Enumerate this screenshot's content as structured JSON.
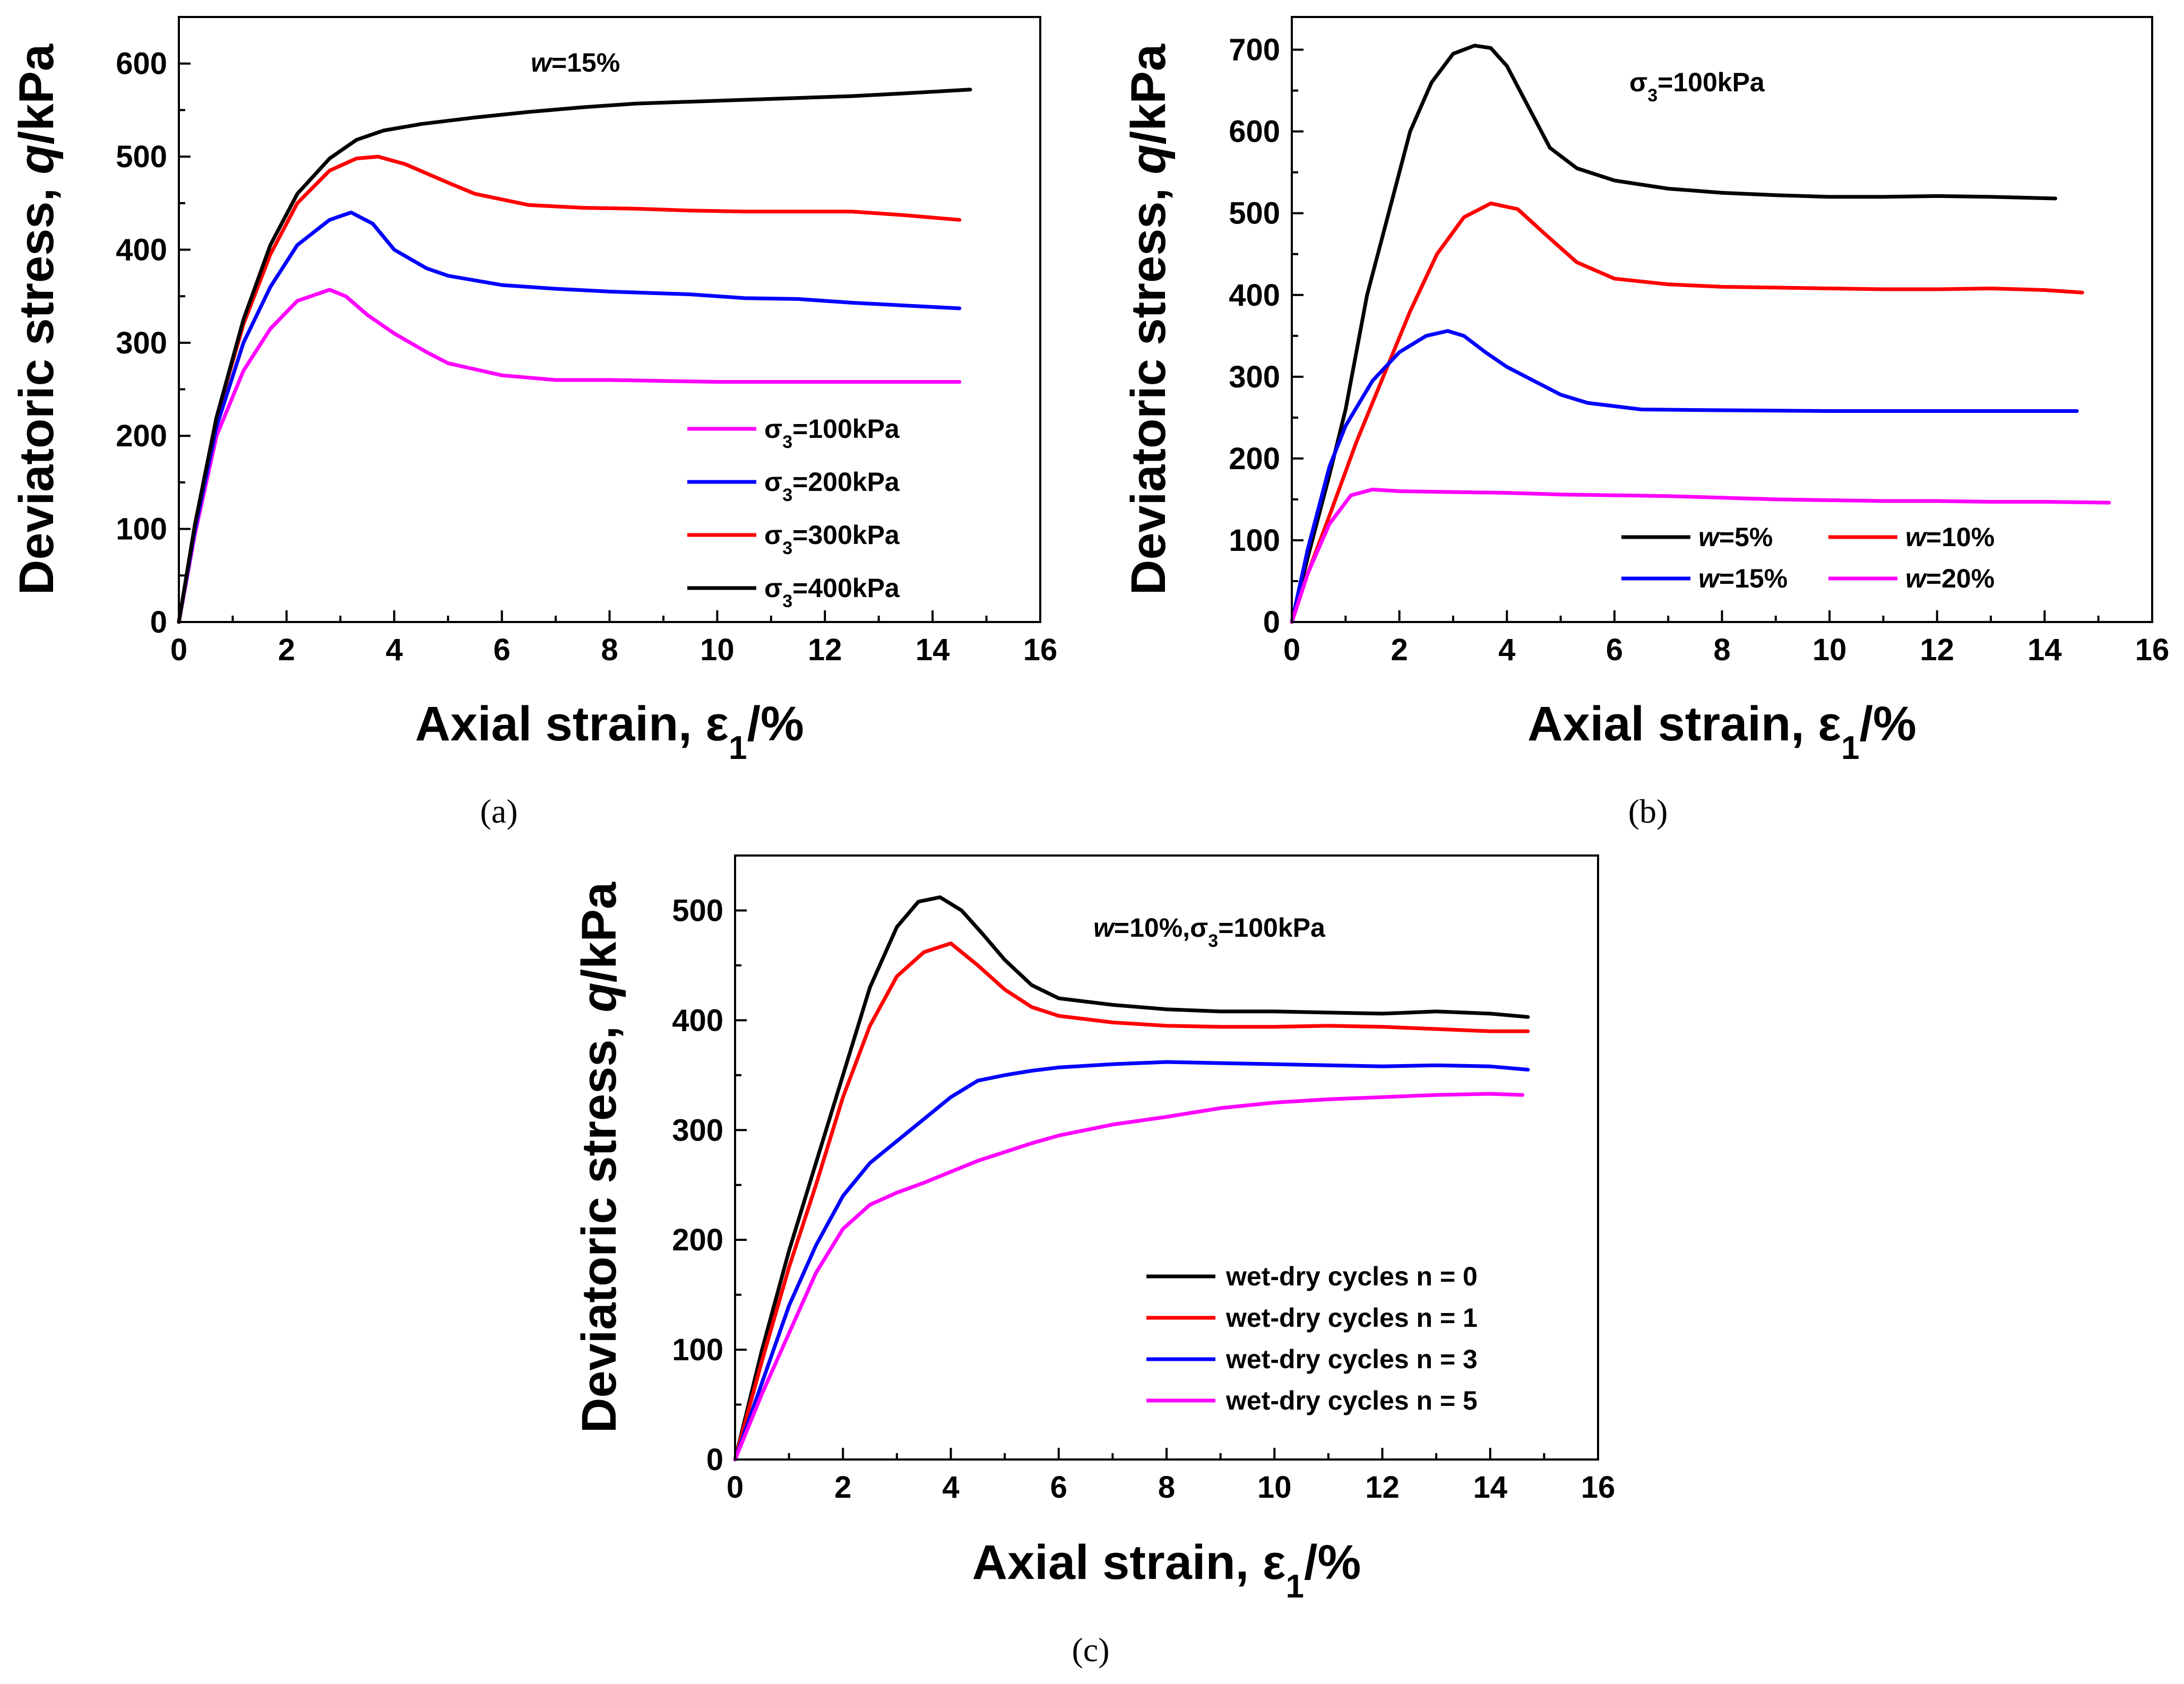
{
  "chart_data": [
    {
      "type": "line",
      "panel_label": "(a)",
      "annotation": {
        "prefix": "w",
        "text": "=15%"
      },
      "xlabel": {
        "text": "Axial strain, ε",
        "sub": "1",
        "tail": "/%"
      },
      "ylabel": {
        "text": "Deviatoric stress, ",
        "italic": "q",
        "tail": "/kPa"
      },
      "xlim": [
        0,
        16
      ],
      "ylim": [
        0,
        650
      ],
      "xticks": [
        "0",
        "2",
        "4",
        "6",
        "8",
        "10",
        "12",
        "14",
        "16"
      ],
      "yticks": [
        "0",
        "100",
        "200",
        "300",
        "400",
        "500",
        "600"
      ],
      "legend_position": "bottom-right",
      "series": [
        {
          "name": "σ3=100kPa",
          "label_pre": "σ",
          "label_sub": "3",
          "label_post": "=100kPa",
          "color": "#ff00ff",
          "x": [
            0,
            0.3,
            0.7,
            1.2,
            1.7,
            2.2,
            2.8,
            3.1,
            3.5,
            4.0,
            4.6,
            5.0,
            6.0,
            7.0,
            8.0,
            10.0,
            12.0,
            14.5
          ],
          "y": [
            0,
            95,
            200,
            270,
            315,
            345,
            357,
            350,
            330,
            310,
            290,
            278,
            265,
            260,
            260,
            258,
            258,
            258
          ]
        },
        {
          "name": "σ3=200kPa",
          "label_pre": "σ",
          "label_sub": "3",
          "label_post": "=200kPa",
          "color": "#0000ff",
          "x": [
            0,
            0.3,
            0.7,
            1.2,
            1.7,
            2.2,
            2.8,
            3.2,
            3.6,
            4.0,
            4.6,
            5.0,
            6.0,
            7.0,
            8.0,
            9.5,
            10.5,
            11.5,
            12.5,
            13.5,
            14.5
          ],
          "y": [
            0,
            100,
            210,
            300,
            360,
            405,
            432,
            440,
            428,
            400,
            380,
            372,
            362,
            358,
            355,
            352,
            348,
            347,
            343,
            340,
            337
          ]
        },
        {
          "name": "σ3=300kPa",
          "label_pre": "σ",
          "label_sub": "3",
          "label_post": "=300kPa",
          "color": "#ff0000",
          "x": [
            0,
            0.3,
            0.7,
            1.2,
            1.7,
            2.2,
            2.8,
            3.3,
            3.7,
            4.2,
            5.0,
            5.5,
            6.5,
            7.5,
            8.5,
            9.5,
            10.5,
            11.5,
            12.5,
            13.5,
            14.5
          ],
          "y": [
            0,
            105,
            220,
            320,
            395,
            450,
            485,
            498,
            500,
            492,
            472,
            460,
            448,
            445,
            444,
            442,
            441,
            441,
            441,
            437,
            432
          ]
        },
        {
          "name": "σ3=400kPa",
          "label_pre": "σ",
          "label_sub": "3",
          "label_post": "=400kPa",
          "color": "#000000",
          "x": [
            0,
            0.3,
            0.7,
            1.2,
            1.7,
            2.2,
            2.8,
            3.3,
            3.8,
            4.5,
            5.5,
            6.5,
            7.5,
            8.5,
            9.5,
            10.5,
            11.5,
            12.5,
            13.5,
            14.7
          ],
          "y": [
            0,
            105,
            220,
            325,
            405,
            460,
            498,
            518,
            528,
            535,
            542,
            548,
            553,
            557,
            559,
            561,
            563,
            565,
            568,
            572
          ]
        }
      ]
    },
    {
      "type": "line",
      "panel_label": "(b)",
      "annotation": {
        "text_pre": "σ",
        "text_sub": "3",
        "text_post": "=100kPa"
      },
      "xlabel": {
        "text": "Axial strain, ε",
        "sub": "1",
        "tail": "/%"
      },
      "ylabel": {
        "text": "Deviatoric stress, ",
        "italic": "q",
        "tail": "/kPa"
      },
      "xlim": [
        0,
        16
      ],
      "ylim": [
        0,
        740
      ],
      "xticks": [
        "0",
        "2",
        "4",
        "6",
        "8",
        "10",
        "12",
        "14",
        "16"
      ],
      "yticks": [
        "0",
        "100",
        "200",
        "300",
        "400",
        "500",
        "600",
        "700"
      ],
      "legend_position": "bottom-right",
      "series": [
        {
          "name": "w=5%",
          "label_italic": "w",
          "label_post": "=5%",
          "color": "#000000",
          "x": [
            0,
            0.3,
            0.7,
            1.0,
            1.4,
            1.8,
            2.2,
            2.6,
            3.0,
            3.4,
            3.7,
            4.0,
            4.4,
            4.8,
            5.3,
            6.0,
            7.0,
            8.0,
            9.0,
            10.0,
            11.0,
            12.0,
            13.0,
            14.2
          ],
          "y": [
            0,
            80,
            180,
            260,
            400,
            500,
            600,
            660,
            695,
            705,
            702,
            680,
            630,
            580,
            555,
            540,
            530,
            525,
            522,
            520,
            520,
            521,
            520,
            518
          ]
        },
        {
          "name": "w=10%",
          "label_italic": "w",
          "label_post": "=10%",
          "color": "#ff0000",
          "x": [
            0,
            0.3,
            0.7,
            1.2,
            1.7,
            2.2,
            2.7,
            3.2,
            3.7,
            4.2,
            4.7,
            5.3,
            6.0,
            7.0,
            8.0,
            9.0,
            10.0,
            11.0,
            12.0,
            13.0,
            14.0,
            14.7
          ],
          "y": [
            0,
            60,
            130,
            220,
            300,
            380,
            450,
            495,
            512,
            505,
            475,
            440,
            420,
            413,
            410,
            409,
            408,
            407,
            407,
            408,
            406,
            403
          ]
        },
        {
          "name": "w=15%",
          "label_italic": "w",
          "label_post": "=15%",
          "color": "#0000ff",
          "x": [
            0,
            0.3,
            0.7,
            1.0,
            1.5,
            2.0,
            2.5,
            2.9,
            3.2,
            3.6,
            4.0,
            4.5,
            5.0,
            5.5,
            6.5,
            8.0,
            10.0,
            12.0,
            14.6
          ],
          "y": [
            0,
            90,
            190,
            240,
            295,
            330,
            350,
            356,
            350,
            330,
            312,
            295,
            278,
            268,
            260,
            259,
            258,
            258,
            258
          ]
        },
        {
          "name": "w=20%",
          "label_italic": "w",
          "label_post": "=20%",
          "color": "#ff00ff",
          "x": [
            0,
            0.3,
            0.7,
            1.1,
            1.5,
            2.0,
            3.0,
            4.0,
            5.0,
            6.0,
            7.0,
            8.0,
            9.0,
            10.0,
            11.0,
            12.0,
            13.0,
            14.0,
            15.2
          ],
          "y": [
            0,
            60,
            120,
            155,
            162,
            160,
            159,
            158,
            156,
            155,
            154,
            152,
            150,
            149,
            148,
            148,
            147,
            147,
            146
          ]
        }
      ]
    },
    {
      "type": "line",
      "panel_label": "(c)",
      "annotation": {
        "prefix": "w",
        "text_pre": "=10%,σ",
        "text_sub": "3",
        "text_post": "=100kPa"
      },
      "xlabel": {
        "text": "Axial strain, ε",
        "sub": "1",
        "tail": "/%"
      },
      "ylabel": {
        "text": "Deviatoric stress, ",
        "italic": "q",
        "tail": "/kPa"
      },
      "xlim": [
        0,
        16
      ],
      "ylim": [
        0,
        550
      ],
      "xticks": [
        "0",
        "2",
        "4",
        "6",
        "8",
        "10",
        "12",
        "14",
        "16"
      ],
      "yticks": [
        "0",
        "100",
        "200",
        "300",
        "400",
        "500"
      ],
      "legend_position": "bottom-right",
      "series": [
        {
          "name": "wet-dry cycles n = 0",
          "color": "#000000",
          "x": [
            0,
            0.5,
            1.0,
            1.5,
            2.0,
            2.5,
            3.0,
            3.4,
            3.8,
            4.2,
            4.6,
            5.0,
            5.5,
            6.0,
            7.0,
            8.0,
            9.0,
            10.0,
            11.0,
            12.0,
            13.0,
            14.0,
            14.7
          ],
          "y": [
            0,
            100,
            190,
            270,
            350,
            430,
            485,
            508,
            512,
            500,
            478,
            455,
            432,
            420,
            414,
            410,
            408,
            408,
            407,
            406,
            408,
            406,
            403
          ]
        },
        {
          "name": "wet-dry cycles n = 1",
          "color": "#ff0000",
          "x": [
            0,
            0.5,
            1.0,
            1.5,
            2.0,
            2.5,
            3.0,
            3.5,
            4.0,
            4.5,
            5.0,
            5.5,
            6.0,
            7.0,
            8.0,
            9.0,
            10.0,
            11.0,
            12.0,
            13.0,
            14.0,
            14.7
          ],
          "y": [
            0,
            90,
            175,
            250,
            330,
            395,
            440,
            462,
            470,
            450,
            428,
            412,
            404,
            398,
            395,
            394,
            394,
            395,
            394,
            392,
            390,
            390
          ]
        },
        {
          "name": "wet-dry cycles n = 3",
          "color": "#0000ff",
          "x": [
            0,
            0.5,
            1.0,
            1.5,
            2.0,
            2.5,
            3.0,
            3.5,
            4.0,
            4.5,
            5.0,
            5.5,
            6.0,
            7.0,
            8.0,
            9.0,
            10.0,
            11.0,
            12.0,
            13.0,
            14.0,
            14.7
          ],
          "y": [
            0,
            70,
            140,
            195,
            240,
            270,
            290,
            310,
            330,
            345,
            350,
            354,
            357,
            360,
            362,
            361,
            360,
            359,
            358,
            359,
            358,
            355
          ]
        },
        {
          "name": "wet-dry cycles n = 5",
          "color": "#ff00ff",
          "x": [
            0,
            0.5,
            1.0,
            1.5,
            2.0,
            2.5,
            3.0,
            3.5,
            4.0,
            4.5,
            5.0,
            5.5,
            6.0,
            7.0,
            8.0,
            9.0,
            10.0,
            11.0,
            12.0,
            13.0,
            14.0,
            14.6
          ],
          "y": [
            0,
            60,
            115,
            170,
            210,
            232,
            243,
            252,
            262,
            272,
            280,
            288,
            295,
            305,
            312,
            320,
            325,
            328,
            330,
            332,
            333,
            332
          ]
        }
      ]
    }
  ]
}
